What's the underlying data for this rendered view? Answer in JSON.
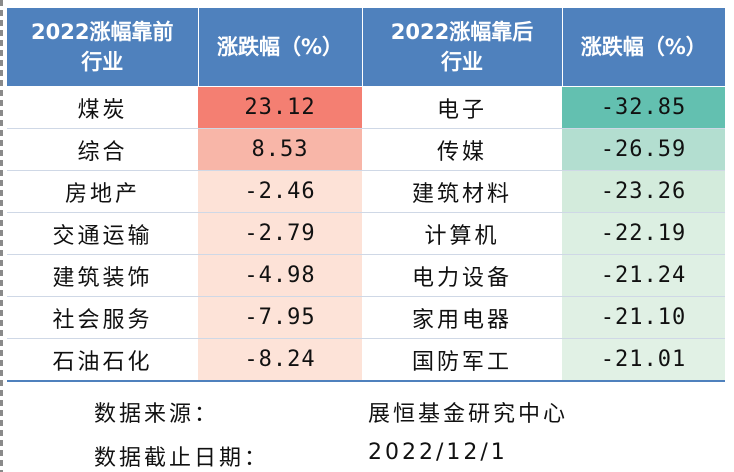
{
  "table": {
    "headers": [
      {
        "line1": "2022涨幅靠前",
        "line2": "行业"
      },
      {
        "line1": "涨跌幅（%）",
        "line2": ""
      },
      {
        "line1": "2022涨幅靠后",
        "line2": "行业"
      },
      {
        "line1": "涨跌幅（%）",
        "line2": ""
      }
    ],
    "rows": [
      {
        "top_industry": "煤炭",
        "top_change": "23.12",
        "bottom_industry": "电子",
        "bottom_change": "-32.85"
      },
      {
        "top_industry": "综合",
        "top_change": "8.53",
        "bottom_industry": "传媒",
        "bottom_change": "-26.59"
      },
      {
        "top_industry": "房地产",
        "top_change": "-2.46",
        "bottom_industry": "建筑材料",
        "bottom_change": "-23.26"
      },
      {
        "top_industry": "交通运输",
        "top_change": "-2.79",
        "bottom_industry": "计算机",
        "bottom_change": "-22.19"
      },
      {
        "top_industry": "建筑装饰",
        "top_change": "-4.98",
        "bottom_industry": "电力设备",
        "bottom_change": "-21.24"
      },
      {
        "top_industry": "社会服务",
        "top_change": "-7.95",
        "bottom_industry": "家用电器",
        "bottom_change": "-21.10"
      },
      {
        "top_industry": "石油石化",
        "top_change": "-8.24",
        "bottom_industry": "国防军工",
        "bottom_change": "-21.01"
      }
    ]
  },
  "footer": {
    "source_label": "数据来源：",
    "source_value": "展恒基金研究中心",
    "date_label": "数据截止日期：",
    "date_value": "2022/12/1"
  },
  "colors": {
    "header_bg": "#4f81bd",
    "top_change_cells": [
      "#f47f72",
      "#f8b6a8",
      "#fde2d7",
      "#fde2d7",
      "#fde2d7",
      "#fde3d8",
      "#fde3d8"
    ],
    "bottom_change_cells": [
      "#63c0b0",
      "#b3ded0",
      "#d3ebdc",
      "#dcefe2",
      "#dff0e4",
      "#e0f0e4",
      "#e1f1e5"
    ]
  }
}
